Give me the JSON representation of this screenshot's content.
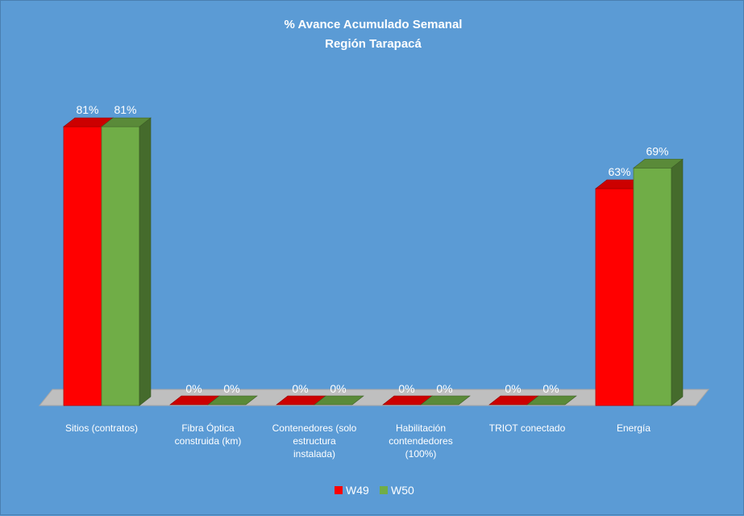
{
  "chart_data": {
    "type": "bar",
    "title": "% Avance Acumulado Semanal",
    "subtitle": "Región Tarapacá",
    "categories": [
      [
        "Sitios (contratos)"
      ],
      [
        "Fibra Óptica",
        "construida (km)"
      ],
      [
        "Contenedores (solo",
        "estructura",
        "instalada)"
      ],
      [
        "Habilitación",
        "contendedores",
        "(100%)"
      ],
      [
        "TRIOT conectado"
      ],
      [
        "Energía"
      ]
    ],
    "series": [
      {
        "name": "W49",
        "color": "#ff0000",
        "values": [
          81,
          0,
          0,
          0,
          0,
          63
        ],
        "labels": [
          "81%",
          "0%",
          "0%",
          "0%",
          "0%",
          "63%"
        ]
      },
      {
        "name": "W50",
        "color": "#70ad47",
        "values": [
          81,
          0,
          0,
          0,
          0,
          69
        ],
        "labels": [
          "81%",
          "0%",
          "0%",
          "0%",
          "0%",
          "69%"
        ]
      }
    ],
    "ylim": [
      0,
      100
    ],
    "legend": "bottom",
    "grid": false,
    "style": "3d-clustered-column"
  }
}
